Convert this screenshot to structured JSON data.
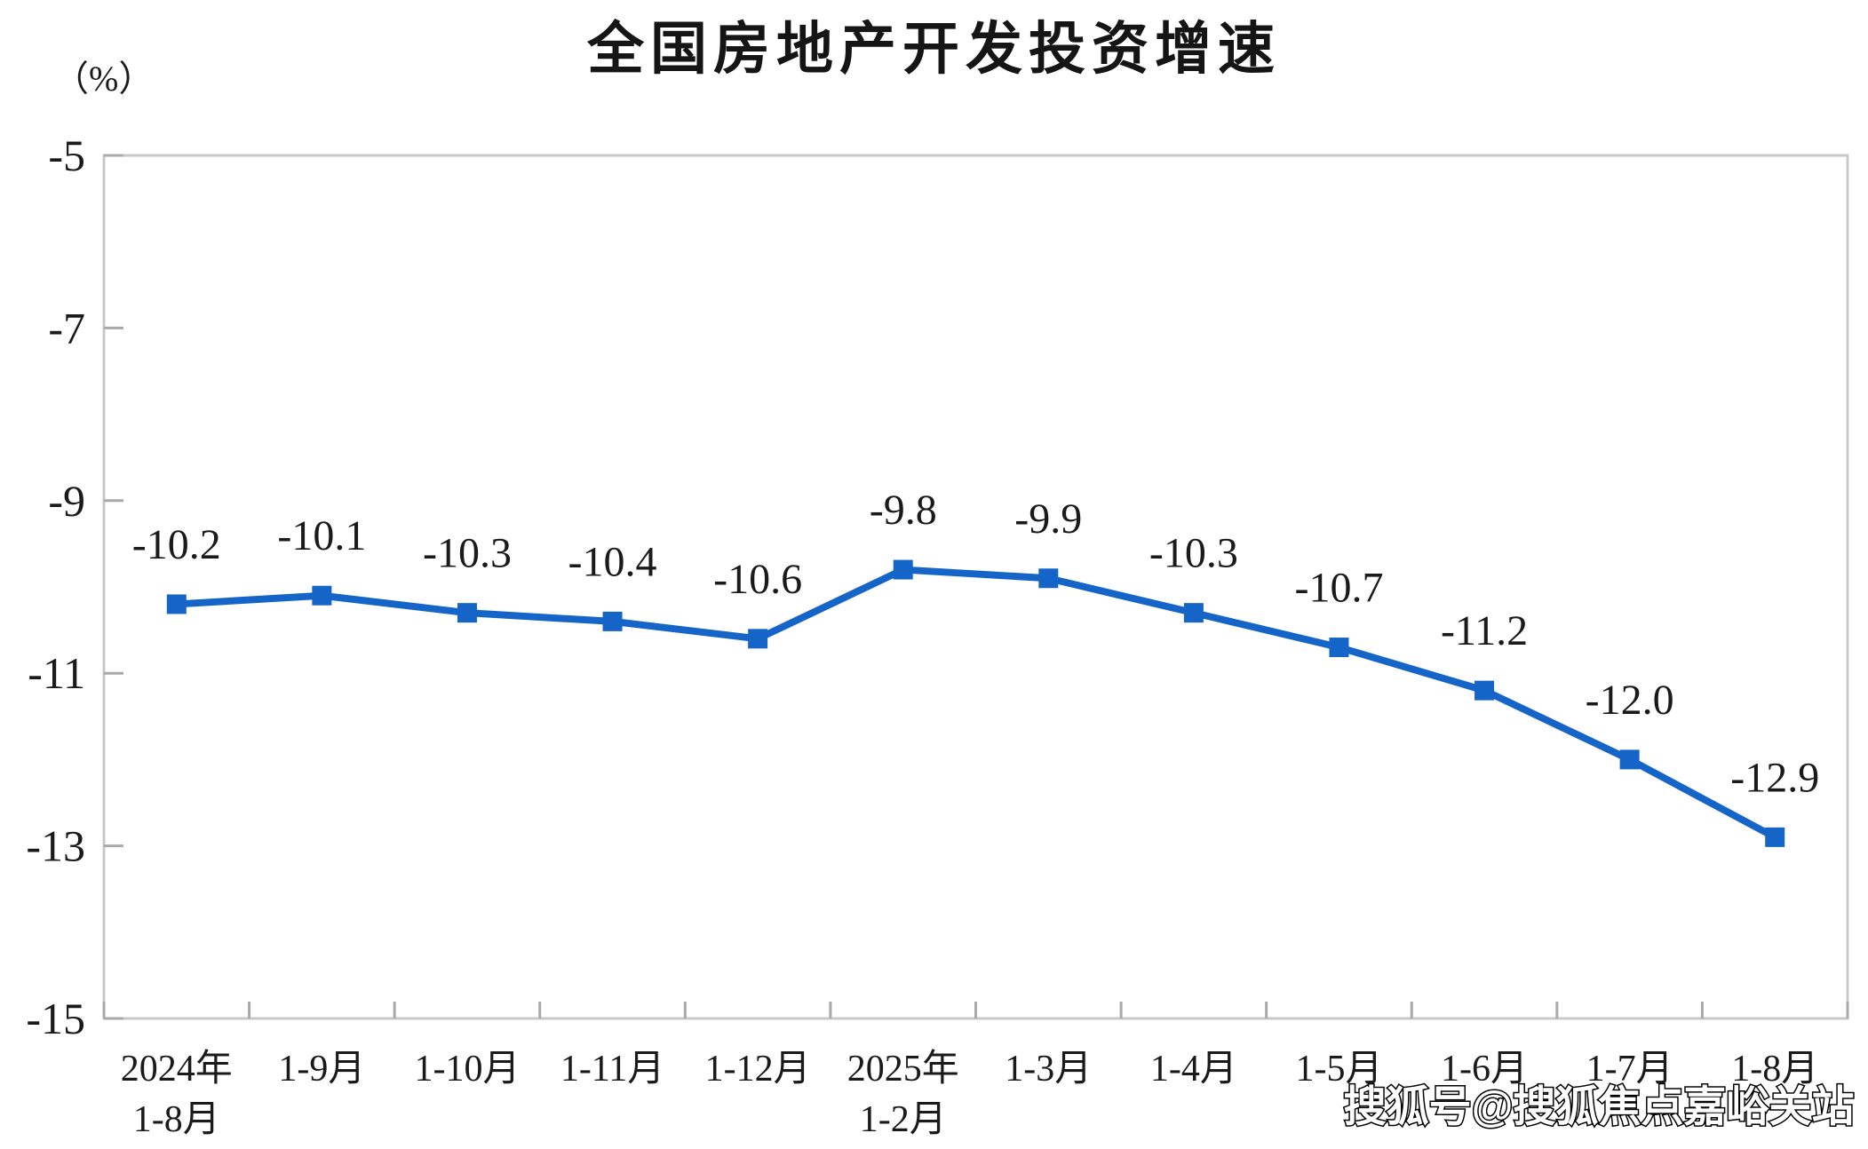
{
  "page": {
    "title": "全国房地产开发投资增速",
    "unit_label": "（%）"
  },
  "watermark": {
    "text": "搜狐号@搜狐焦点嘉峪关站"
  },
  "chart_data": {
    "type": "line",
    "title": "全国房地产开发投资增速",
    "ylabel": "（%）",
    "xlabel": "",
    "categories": [
      [
        "2024年",
        "1-8月"
      ],
      [
        "1-9月",
        ""
      ],
      [
        "1-10月",
        ""
      ],
      [
        "1-11月",
        ""
      ],
      [
        "1-12月",
        ""
      ],
      [
        "2025年",
        "1-2月"
      ],
      [
        "1-3月",
        ""
      ],
      [
        "1-4月",
        ""
      ],
      [
        "1-5月",
        ""
      ],
      [
        "1-6月",
        ""
      ],
      [
        "1-7月",
        ""
      ],
      [
        "1-8月",
        ""
      ]
    ],
    "values": [
      -10.2,
      -10.1,
      -10.3,
      -10.4,
      -10.6,
      -9.8,
      -9.9,
      -10.3,
      -10.7,
      -11.2,
      -12.0,
      -12.9
    ],
    "data_labels": [
      "-10.2",
      "-10.1",
      "-10.3",
      "-10.4",
      "-10.6",
      "-9.8",
      "-9.9",
      "-10.3",
      "-10.7",
      "-11.2",
      "-12.0",
      "-12.9"
    ],
    "ylim": [
      -15,
      -5
    ],
    "yticks": [
      -5,
      -7,
      -9,
      -11,
      -13,
      -15
    ],
    "grid": false,
    "legend_position": "none",
    "marker": "square",
    "line_color": "#1565c8",
    "label_color": "#1a1a1a",
    "axis_color": "#c8c8c8",
    "tick_color": "#a9a9a9",
    "watermark_fill": "#ffffff",
    "watermark_outline": "#000000"
  }
}
